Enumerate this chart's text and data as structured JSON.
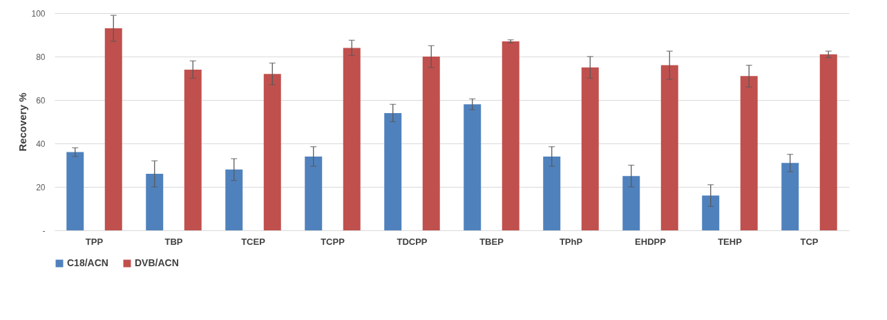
{
  "chart_data": {
    "type": "bar",
    "ylabel": "Recovery %",
    "categories": [
      "TPP",
      "TBP",
      "TCEP",
      "TCPP",
      "TDCPP",
      "TBEP",
      "TPhP",
      "EHDPP",
      "TEHP",
      "TCP"
    ],
    "series": [
      {
        "name": "C18/ACN",
        "color": "#4f81bd",
        "values": [
          36,
          26,
          28,
          34,
          54,
          58,
          34,
          25,
          16,
          31
        ],
        "errors": [
          2,
          6,
          5,
          4.5,
          4,
          2.5,
          4.5,
          5,
          5,
          4
        ]
      },
      {
        "name": "DVB/ACN",
        "color": "#c0504d",
        "values": [
          93,
          74,
          72,
          84,
          80,
          87,
          75,
          76,
          71,
          81
        ],
        "errors": [
          6,
          4,
          5,
          3.5,
          5,
          0.7,
          5,
          6.5,
          5,
          1.5
        ]
      }
    ],
    "ylim": [
      0,
      100
    ],
    "yticks": [
      {
        "value": 0,
        "label": "-"
      },
      20,
      40,
      60,
      80,
      100
    ],
    "grid": "y",
    "legend": "bottom"
  }
}
